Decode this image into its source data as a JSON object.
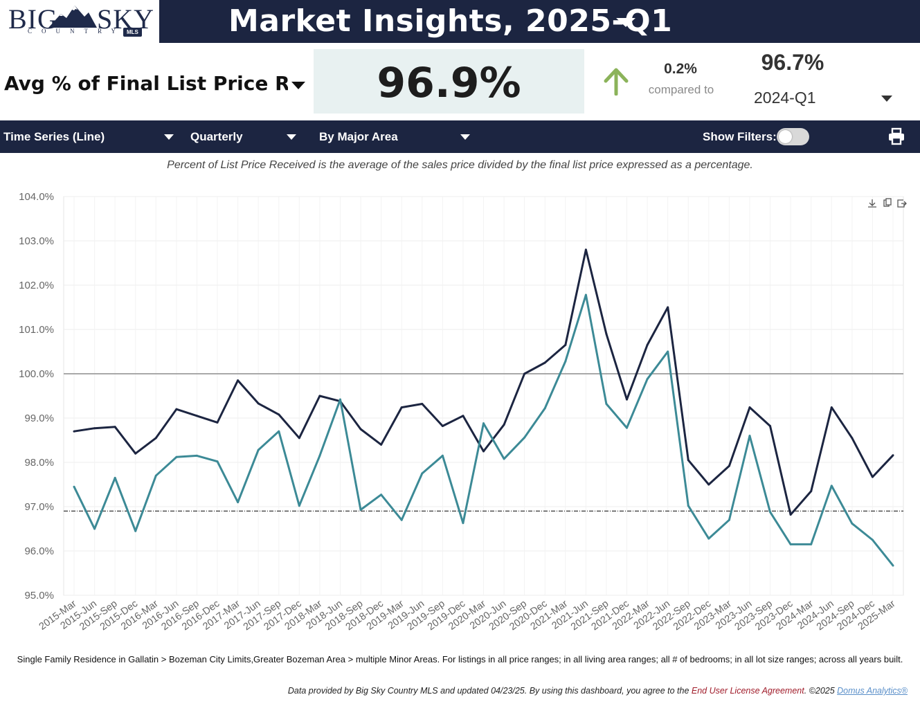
{
  "logo": {
    "big": "BIG",
    "sky": "SKY",
    "country": "COUNTRY",
    "mls": "MLS"
  },
  "header": {
    "title": "Market Insights, 2025-Q1"
  },
  "metric": {
    "label": "Avg % of Final List Price Rec'd",
    "value": "96.9%",
    "change": "0.2%",
    "compared_label": "compared to",
    "compare_value": "96.7%",
    "compare_period": "2024-Q1",
    "trend_direction": "up",
    "trend_color": "#8bb35a"
  },
  "filters": {
    "chart_type": "Time Series (Line)",
    "interval": "Quarterly",
    "grouping": "By Major Area",
    "show_filters_label": "Show Filters:",
    "show_filters_on": false
  },
  "subtitle": "Percent of List Price Received is the average of the sales price divided by the final list price expressed as a percentage.",
  "chart_data": {
    "type": "line",
    "categories": [
      "2015-Mar",
      "2015-Jun",
      "2015-Sep",
      "2015-Dec",
      "2016-Mar",
      "2016-Jun",
      "2016-Sep",
      "2016-Dec",
      "2017-Mar",
      "2017-Jun",
      "2017-Sep",
      "2017-Dec",
      "2018-Mar",
      "2018-Jun",
      "2018-Sep",
      "2018-Dec",
      "2019-Mar",
      "2019-Jun",
      "2019-Sep",
      "2019-Dec",
      "2020-Mar",
      "2020-Jun",
      "2020-Sep",
      "2020-Dec",
      "2021-Mar",
      "2021-Jun",
      "2021-Sep",
      "2021-Dec",
      "2022-Mar",
      "2022-Jun",
      "2022-Sep",
      "2022-Dec",
      "2023-Mar",
      "2023-Jun",
      "2023-Sep",
      "2023-Dec",
      "2024-Mar",
      "2024-Jun",
      "2024-Sep",
      "2024-Dec",
      "2025-Mar"
    ],
    "series": [
      {
        "color": "#1c2541",
        "values": [
          98.7,
          98.77,
          98.8,
          98.2,
          98.55,
          99.2,
          99.05,
          98.9,
          99.85,
          99.33,
          99.08,
          98.55,
          99.5,
          99.38,
          98.75,
          98.4,
          99.24,
          99.32,
          98.82,
          99.05,
          98.25,
          98.85,
          100.0,
          100.25,
          100.65,
          102.8,
          100.9,
          99.42,
          100.65,
          101.5,
          98.05,
          97.5,
          97.92,
          99.24,
          98.82,
          96.82,
          97.35,
          99.24,
          98.55,
          97.67,
          98.16
        ]
      },
      {
        "color": "#3c8a96",
        "values": [
          97.45,
          96.5,
          97.65,
          96.45,
          97.7,
          98.12,
          98.15,
          98.02,
          97.1,
          98.28,
          98.7,
          97.02,
          98.15,
          99.42,
          96.93,
          97.27,
          96.7,
          97.75,
          98.15,
          96.63,
          98.88,
          98.08,
          98.56,
          99.22,
          100.28,
          101.78,
          99.32,
          98.78,
          99.88,
          100.5,
          97.02,
          96.28,
          96.7,
          98.6,
          96.88,
          96.15,
          96.15,
          97.47,
          96.62,
          96.25,
          95.67
        ]
      }
    ],
    "reference_lines": [
      {
        "value": 100.0,
        "style": "solid",
        "color": "#a8a8a8"
      },
      {
        "value": 96.9,
        "style": "dash-dot",
        "color": "#333333"
      }
    ],
    "y_ticks": [
      "104.0%",
      "103.0%",
      "102.0%",
      "101.0%",
      "100.0%",
      "99.0%",
      "98.0%",
      "97.0%",
      "96.0%",
      "95.0%"
    ],
    "ylim": [
      95.0,
      104.0
    ],
    "grid": true,
    "legend": "none"
  },
  "footer": {
    "description": "Single Family Residence in Gallatin > Bozeman City Limits,Greater Bozeman Area > multiple Minor Areas. For listings in all price ranges; in all living area ranges; all # of bedrooms; in all lot size ranges; across all years built.",
    "credit_prefix": "Data provided by Big Sky Country MLS and updated 04/23/25.  By using this dashboard, you agree to the ",
    "eula_link": "End User License Agreement",
    "credit_middle": ".  ©2025 ",
    "domus_link": "Domus Analytics®"
  }
}
